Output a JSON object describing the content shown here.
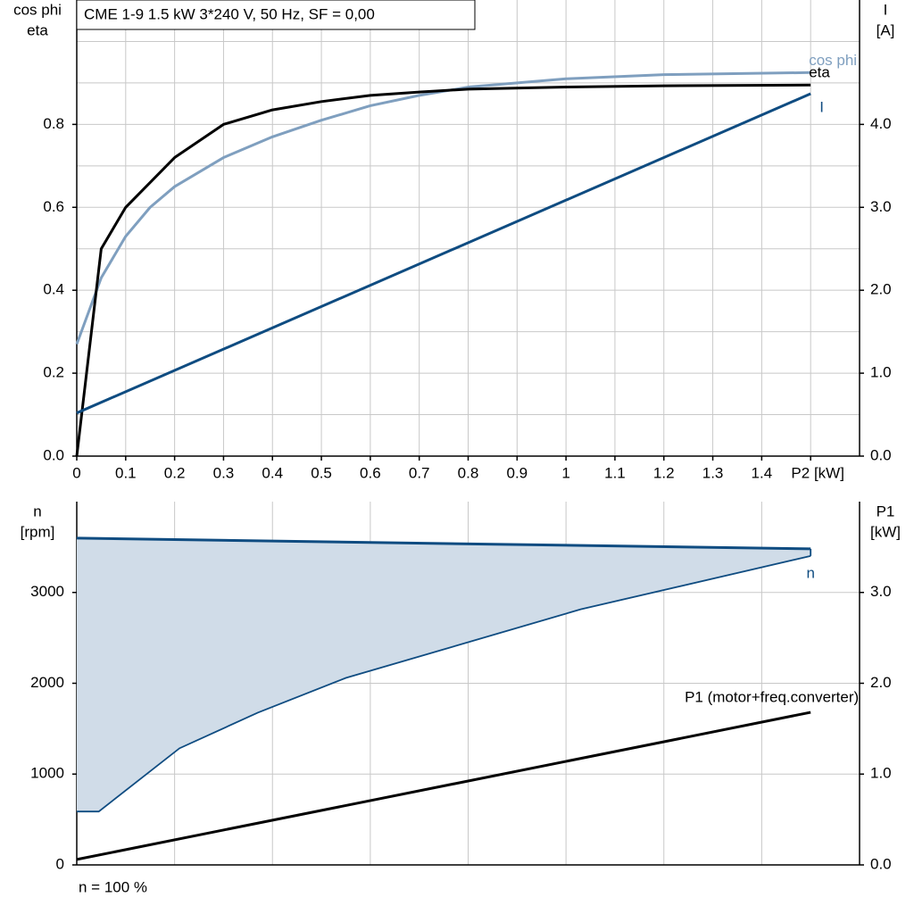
{
  "chart_data": [
    {
      "type": "line",
      "title": "CME 1-9   1.5 kW   3*240 V, 50 Hz, SF = 0,00",
      "y_label": [
        "cos phi",
        "eta"
      ],
      "y2_label": [
        "I",
        "[A]"
      ],
      "xlim": [
        0,
        1.6
      ],
      "xticks": [
        0,
        0.1,
        0.2,
        0.3,
        0.4,
        0.5,
        0.6,
        0.7,
        0.8,
        0.9,
        1.0,
        1.1,
        1.2,
        1.3,
        1.4,
        {
          "value": 1.5,
          "label": "P2 [kW]"
        }
      ],
      "ylim": [
        0,
        1.1
      ],
      "yticks": [
        {
          "value": 0,
          "label": "0.0"
        },
        0.2,
        0.4,
        0.6,
        0.8
      ],
      "yminor": [
        0.1,
        0.3,
        0.5,
        0.7,
        0.9,
        1.0
      ],
      "y2lim": [
        0,
        5.5
      ],
      "y2ticks": [
        {
          "value": 0,
          "label": "0.0"
        },
        {
          "value": 1,
          "label": "1.0"
        },
        {
          "value": 2,
          "label": "2.0"
        },
        {
          "value": 3,
          "label": "3.0"
        },
        {
          "value": 4,
          "label": "4.0"
        }
      ],
      "grid": true,
      "series": [
        {
          "name": "cos phi",
          "color": "#7f9fbf",
          "x": [
            0,
            0.05,
            0.1,
            0.15,
            0.2,
            0.3,
            0.4,
            0.5,
            0.6,
            0.7,
            0.8,
            0.9,
            1.0,
            1.2,
            1.5
          ],
          "values": [
            0.27,
            0.43,
            0.53,
            0.6,
            0.65,
            0.72,
            0.77,
            0.81,
            0.845,
            0.87,
            0.89,
            0.9,
            0.91,
            0.92,
            0.925
          ]
        },
        {
          "name": "eta",
          "color": "#000000",
          "x": [
            0,
            0.05,
            0.1,
            0.15,
            0.2,
            0.3,
            0.4,
            0.5,
            0.6,
            0.7,
            0.8,
            1.0,
            1.2,
            1.5
          ],
          "values": [
            0,
            0.5,
            0.6,
            0.66,
            0.72,
            0.8,
            0.835,
            0.855,
            0.87,
            0.878,
            0.885,
            0.89,
            0.893,
            0.895
          ]
        },
        {
          "name": "I",
          "color": "#0f4c81",
          "axis": "y2",
          "x": [
            0,
            1.5
          ],
          "values": [
            0.52,
            4.37
          ]
        }
      ]
    },
    {
      "type": "line",
      "y_label": [
        "n",
        "[rpm]"
      ],
      "y2_label": [
        "P1",
        "[kW]"
      ],
      "footer": "n = 100 %",
      "xlim": [
        0,
        1.6
      ],
      "xminor": [
        0.2,
        0.4,
        0.6,
        0.8,
        1.0,
        1.2,
        1.4
      ],
      "ylim": [
        0,
        4000
      ],
      "yticks": [
        0,
        1000,
        2000,
        3000
      ],
      "y2lim": [
        0,
        4
      ],
      "y2ticks": [
        {
          "value": 0,
          "label": "0.0"
        },
        {
          "value": 1,
          "label": "1.0"
        },
        {
          "value": 2,
          "label": "2.0"
        },
        {
          "value": 3,
          "label": "3.0"
        }
      ],
      "grid": true,
      "series": [
        {
          "name": "n",
          "color": "#0f4c81",
          "fill": "#d0dce8",
          "x": [
            0,
            1.5
          ],
          "values": [
            3598,
            3480
          ],
          "lower_x": [
            0,
            0.045,
            0.21,
            0.37,
            0.55,
            1.03,
            1.5
          ],
          "lower_values": [
            588,
            588,
            1284,
            1676,
            2059,
            2814,
            3402
          ]
        },
        {
          "name": "P1 (motor+freq.converter)",
          "color": "#000000",
          "axis": "y2",
          "x": [
            0,
            1.5
          ],
          "values": [
            0.06,
            1.68
          ]
        }
      ]
    }
  ]
}
